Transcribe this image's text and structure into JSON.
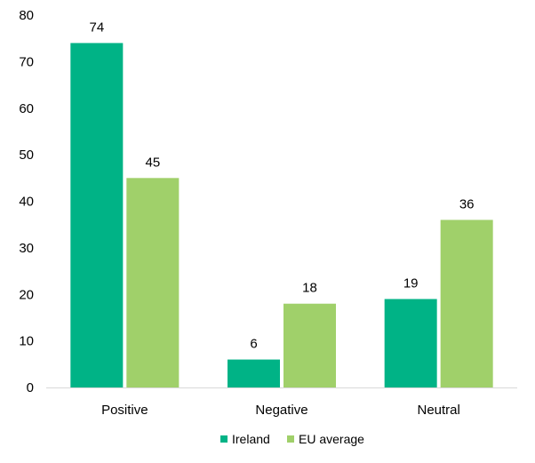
{
  "chart_data": {
    "type": "bar",
    "categories": [
      "Positive",
      "Negative",
      "Neutral"
    ],
    "series": [
      {
        "name": "Ireland",
        "values": [
          74,
          6,
          19
        ],
        "color": "#00b386"
      },
      {
        "name": "EU average",
        "values": [
          45,
          18,
          36
        ],
        "color": "#a0d06a"
      }
    ],
    "title": "",
    "xlabel": "",
    "ylabel": "",
    "ylim": [
      0,
      80
    ],
    "yticks": [
      0,
      10,
      20,
      30,
      40,
      50,
      60,
      70,
      80
    ],
    "grid": false,
    "legend_position": "bottom-center",
    "data_labels": true
  }
}
